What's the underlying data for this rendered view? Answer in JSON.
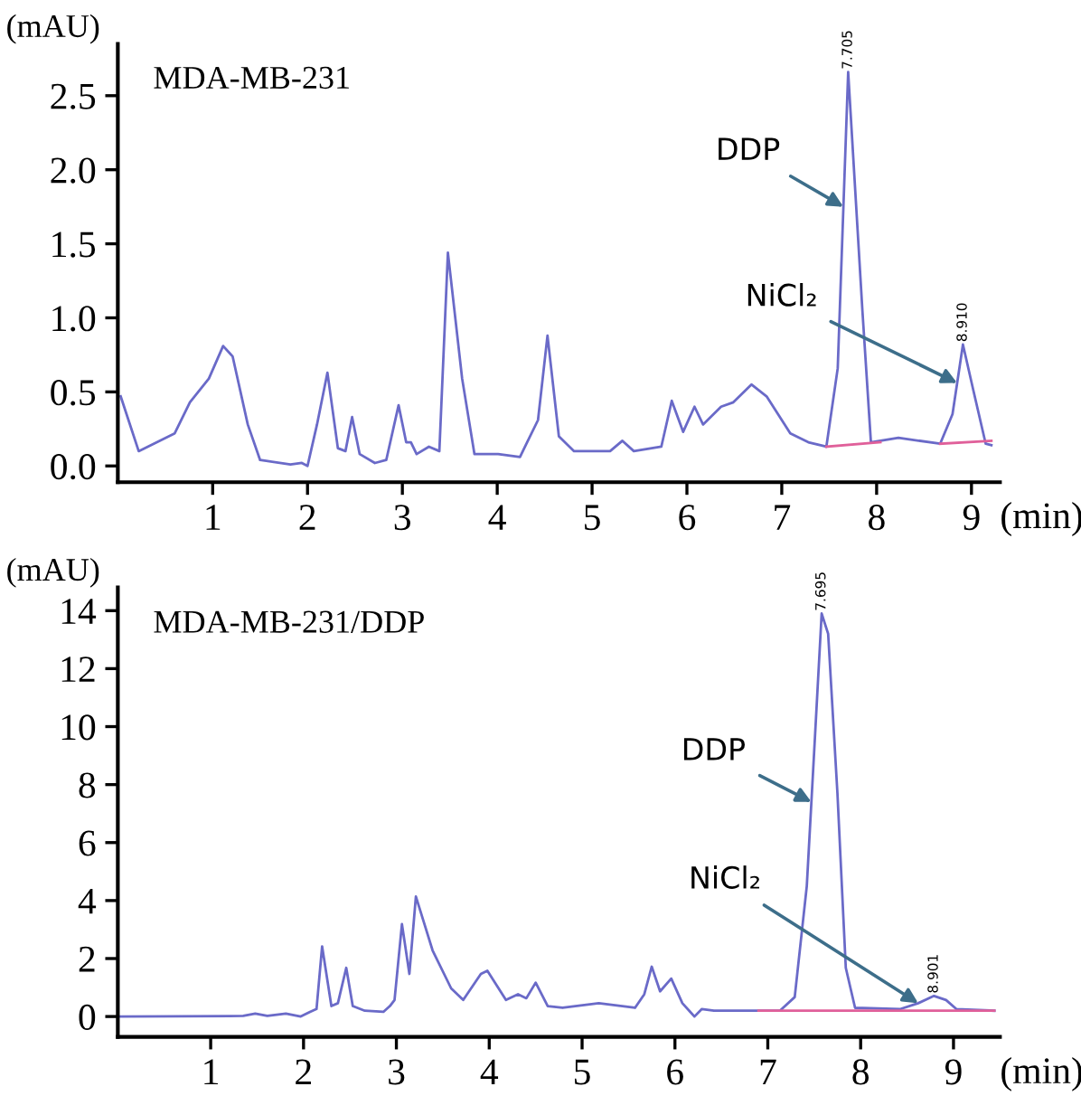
{
  "chart_data": [
    {
      "type": "line",
      "title": "MDA-MB-231",
      "xlabel": "(min)",
      "ylabel": "(mAU)",
      "xlim": [
        0,
        9.3
      ],
      "ylim": [
        -0.11,
        2.85
      ],
      "xticks": [
        1,
        2,
        3,
        4,
        5,
        6,
        7,
        8,
        9
      ],
      "yticks": [
        {
          "value": 0,
          "label": "0.0"
        },
        {
          "value": 0.5,
          "label": "0.5"
        },
        {
          "value": 1,
          "label": "1.0"
        },
        {
          "value": 1.5,
          "label": "1.5"
        },
        {
          "value": 2,
          "label": "2.0"
        },
        {
          "value": 2.5,
          "label": "2.5"
        }
      ],
      "series": [
        {
          "color": "#6a6ac8",
          "x": [
            0.03,
            0.22,
            0.6,
            0.76,
            0.96,
            1.11,
            1.21,
            1.37,
            1.5,
            1.82,
            1.94,
            2.0,
            2.1,
            2.21,
            2.32,
            2.4,
            2.47,
            2.55,
            2.71,
            2.83,
            2.96,
            3.04,
            3.09,
            3.15,
            3.28,
            3.39,
            3.48,
            3.63,
            3.76,
            4.01,
            4.24,
            4.3,
            4.43,
            4.53,
            4.65,
            4.81,
            5.19,
            5.32,
            5.44,
            5.73,
            5.84,
            5.96,
            6.08,
            6.17,
            6.36,
            6.49,
            6.68,
            6.84,
            7.09,
            7.28,
            7.47,
            7.59,
            7.7,
            7.85,
            7.94,
            8.23,
            8.67,
            8.8,
            8.91,
            9.02,
            9.15,
            9.21
          ],
          "values": [
            0.47,
            0.1,
            0.22,
            0.43,
            0.59,
            0.81,
            0.74,
            0.28,
            0.04,
            0.01,
            0.02,
            0.0,
            0.28,
            0.63,
            0.12,
            0.1,
            0.33,
            0.08,
            0.02,
            0.04,
            0.41,
            0.16,
            0.16,
            0.08,
            0.13,
            0.1,
            1.44,
            0.59,
            0.08,
            0.08,
            0.06,
            0.14,
            0.31,
            0.88,
            0.2,
            0.1,
            0.1,
            0.17,
            0.1,
            0.13,
            0.44,
            0.23,
            0.4,
            0.28,
            0.4,
            0.43,
            0.55,
            0.47,
            0.22,
            0.16,
            0.13,
            0.66,
            2.66,
            1.05,
            0.16,
            0.19,
            0.15,
            0.35,
            0.82,
            0.51,
            0.15,
            0.14
          ]
        },
        {
          "color": "#e0609a",
          "x": [
            7.47,
            8.04
          ],
          "values": [
            0.13,
            0.16
          ]
        },
        {
          "color": "#e0609a",
          "x": [
            8.67,
            9.21
          ],
          "values": [
            0.15,
            0.17
          ]
        }
      ],
      "annotations": [
        {
          "text": "DDP",
          "x": 7.65,
          "y": 1.75
        },
        {
          "text": "NiCl₂",
          "x": 8.85,
          "y": 0.56
        },
        {
          "text": "7.705",
          "x": 7.7,
          "y": 2.66
        },
        {
          "text": "8.910",
          "x": 8.91,
          "y": 0.82
        }
      ]
    },
    {
      "type": "line",
      "title": "MDA-MB-231/DDP",
      "xlabel": "(min)",
      "ylabel": "(mAU)",
      "xlim": [
        0,
        9.5
      ],
      "ylim": [
        -0.7,
        14.8
      ],
      "xticks": [
        1,
        2,
        3,
        4,
        5,
        6,
        7,
        8,
        9
      ],
      "yticks": [
        0,
        2,
        4,
        6,
        8,
        10,
        12,
        14
      ],
      "series": [
        {
          "color": "#6a6ac8",
          "x": [
            0,
            1.35,
            1.48,
            1.61,
            1.81,
            1.97,
            2.07,
            2.14,
            2.2,
            2.3,
            2.37,
            2.46,
            2.53,
            2.66,
            2.86,
            2.93,
            2.98,
            3.06,
            3.14,
            3.21,
            3.39,
            3.59,
            3.72,
            3.91,
            3.98,
            4.18,
            4.31,
            4.4,
            4.5,
            4.63,
            4.79,
            5.18,
            5.57,
            5.67,
            5.75,
            5.84,
            5.96,
            6.08,
            6.21,
            6.29,
            6.42,
            7.13,
            7.29,
            7.42,
            7.51,
            7.58,
            7.65,
            7.75,
            7.84,
            7.94,
            8.43,
            8.62,
            8.79,
            8.92,
            9.03,
            9.44
          ],
          "values": [
            0,
            0.02,
            0.1,
            0.02,
            0.1,
            0,
            0.16,
            0.26,
            2.42,
            0.36,
            0.46,
            1.68,
            0.36,
            0.2,
            0.16,
            0.36,
            0.57,
            3.19,
            1.47,
            4.14,
            2.28,
            0.97,
            0.57,
            1.47,
            1.58,
            0.57,
            0.77,
            0.63,
            1.17,
            0.36,
            0.3,
            0.46,
            0.3,
            0.77,
            1.72,
            0.87,
            1.31,
            0.46,
            0,
            0.26,
            0.2,
            0.2,
            0.67,
            4.5,
            9.76,
            13.9,
            13.2,
            7.7,
            1.68,
            0.3,
            0.26,
            0.46,
            0.71,
            0.57,
            0.26,
            0.2
          ]
        },
        {
          "color": "#e0609a",
          "x": [
            6.9,
            9.44
          ],
          "values": [
            0.2,
            0.2
          ]
        }
      ],
      "annotations": [
        {
          "text": "DDP",
          "x": 7.47,
          "y": 7.4
        },
        {
          "text": "NiCl₂",
          "x": 8.62,
          "y": 0.46
        },
        {
          "text": "7.695",
          "x": 7.58,
          "y": 13.9
        },
        {
          "text": "8.901",
          "x": 8.79,
          "y": 0.71
        }
      ]
    }
  ]
}
